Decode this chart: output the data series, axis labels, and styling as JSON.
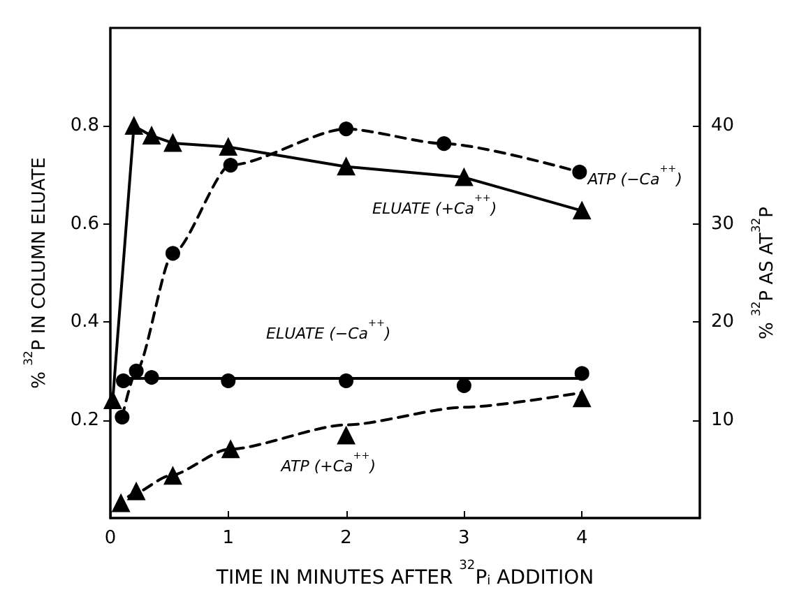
{
  "chart_data": {
    "type": "line",
    "xlabel": "TIME IN MINUTES AFTER $^{32}$P$_{i}$ ADDITION",
    "ylabel": "% $^{32}$P IN COLUMN ELUATE",
    "y2label": "% $^{32}$P AS AT$^{32}$P",
    "xlim": [
      0,
      5
    ],
    "xticks": [
      0,
      1,
      2,
      3,
      4
    ],
    "ylim": [
      0,
      1
    ],
    "yticks": [
      0.2,
      0.4,
      0.6,
      0.8
    ],
    "y2lim": [
      0,
      50
    ],
    "y2ticks": [
      10,
      20,
      30,
      40
    ],
    "grid": false,
    "series": [
      {
        "color": "#000000",
        "marker": "triangle",
        "line_style": "solid",
        "x": [
          0.02,
          0.2,
          0.35,
          0.53,
          1.0,
          2.0,
          3.0,
          4.0
        ],
        "values": [
          0.24,
          0.8,
          0.78,
          0.765,
          0.757,
          0.717,
          0.695,
          0.627
        ]
      },
      {
        "type": "scatter",
        "color": "#000000",
        "marker": "circle",
        "x": [
          0.11,
          0.35,
          1.0,
          2.0,
          3.0,
          4.0
        ],
        "values": [
          0.28,
          0.287,
          0.28,
          0.28,
          0.27,
          0.295
        ]
      },
      {
        "color": "#000000",
        "marker": "none",
        "line_style": "solid",
        "x": [
          0.11,
          4.0
        ],
        "values": [
          0.285,
          0.285
        ]
      },
      {
        "axis": "y2",
        "color": "#000000",
        "marker": "circle",
        "line_style": "dashed",
        "x": [
          0.1,
          0.22,
          0.53,
          1.02,
          2.0,
          2.83,
          3.98
        ],
        "values": [
          10.3,
          15,
          27,
          36,
          39.7,
          38.2,
          35.3
        ]
      },
      {
        "type": "scatter",
        "axis": "y2",
        "color": "#000000",
        "marker": "triangle",
        "x": [
          0.09,
          0.22,
          0.53,
          1.02,
          2.0,
          4.0
        ],
        "values": [
          1.5,
          2.7,
          4.3,
          7,
          8.4,
          12.2
        ]
      },
      {
        "axis": "y2",
        "color": "#000000",
        "marker": "none",
        "line_style": "dashed",
        "x": [
          0.05,
          0.2,
          0.5,
          1,
          2,
          3,
          4
        ],
        "values": [
          1,
          2.5,
          4.3,
          7,
          9.5,
          11.3,
          12.8
        ]
      }
    ],
    "annotations": [
      "ATP (−Ca$^{++}$)",
      "ELUATE (+Ca$^{++}$)",
      "ELUATE (−Ca$^{++}$)",
      "ATP (+Ca$^{++}$)"
    ]
  }
}
